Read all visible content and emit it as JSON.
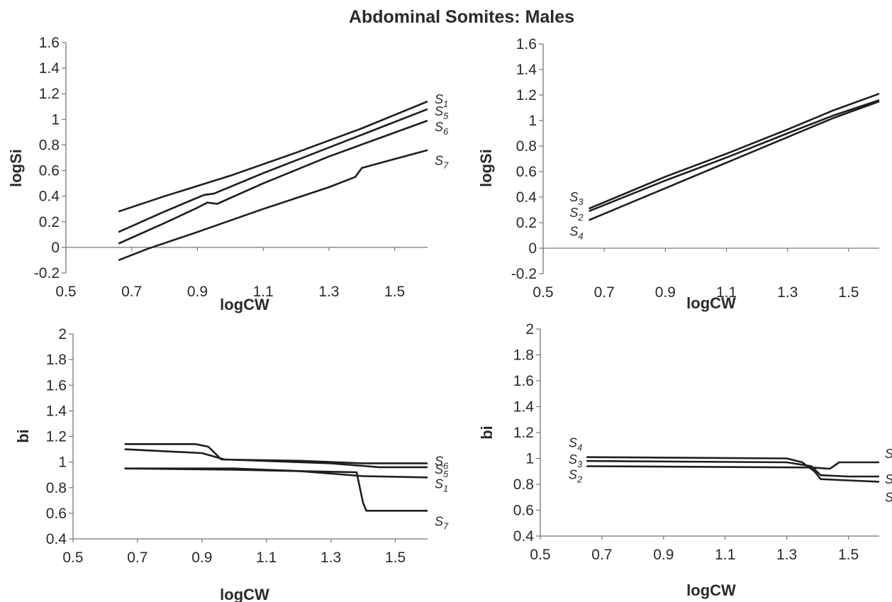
{
  "figure": {
    "title": "Abdominal Somites: Males"
  },
  "chart_data": [
    {
      "id": "top-left",
      "type": "line",
      "title": "",
      "xlabel": "logCW",
      "ylabel": "logSi",
      "xlim": [
        0.5,
        1.6
      ],
      "ylim": [
        -0.2,
        1.6
      ],
      "xticks": [
        "0.5",
        "0.7",
        "0.9",
        "1.1",
        "1.3",
        "1.5"
      ],
      "yticks": [
        "-0.2",
        "0",
        "0.2",
        "0.4",
        "0.6",
        "0.8",
        "1",
        "1.2",
        "1.4",
        "1.6"
      ],
      "series": [
        {
          "name": "S1",
          "x": [
            0.66,
            0.8,
            1.0,
            1.2,
            1.4,
            1.6
          ],
          "y": [
            0.28,
            0.4,
            0.56,
            0.74,
            0.93,
            1.14
          ]
        },
        {
          "name": "S5",
          "x": [
            0.66,
            0.8,
            0.92,
            0.95,
            1.1,
            1.3,
            1.45,
            1.6
          ],
          "y": [
            0.12,
            0.28,
            0.41,
            0.42,
            0.58,
            0.78,
            0.93,
            1.08
          ]
        },
        {
          "name": "S6",
          "x": [
            0.66,
            0.8,
            0.9,
            0.93,
            0.96,
            1.1,
            1.3,
            1.45,
            1.6
          ],
          "y": [
            0.03,
            0.19,
            0.31,
            0.35,
            0.34,
            0.5,
            0.71,
            0.85,
            0.99
          ]
        },
        {
          "name": "S7",
          "x": [
            0.66,
            0.75,
            0.9,
            1.1,
            1.3,
            1.38,
            1.4,
            1.5,
            1.6
          ],
          "y": [
            -0.1,
            -0.01,
            0.12,
            0.3,
            0.47,
            0.55,
            0.62,
            0.69,
            0.76
          ]
        }
      ]
    },
    {
      "id": "top-right",
      "type": "line",
      "title": "",
      "xlabel": "logCW",
      "ylabel": "logSi",
      "xlim": [
        0.5,
        1.6
      ],
      "ylim": [
        -0.2,
        1.6
      ],
      "xticks": [
        "0.5",
        "0.7",
        "0.9",
        "1.1",
        "1.3",
        "1.5"
      ],
      "yticks": [
        "-0.2",
        "0",
        "0.2",
        "0.4",
        "0.6",
        "0.8",
        "1",
        "1.2",
        "1.4",
        "1.6"
      ],
      "series": [
        {
          "name": "S3",
          "x": [
            0.65,
            0.9,
            1.1,
            1.3,
            1.45,
            1.6
          ],
          "y": [
            0.31,
            0.56,
            0.74,
            0.93,
            1.08,
            1.21
          ]
        },
        {
          "name": "S2",
          "x": [
            0.65,
            0.9,
            1.1,
            1.3,
            1.45,
            1.6
          ],
          "y": [
            0.29,
            0.53,
            0.71,
            0.9,
            1.04,
            1.16
          ]
        },
        {
          "name": "S4",
          "x": [
            0.65,
            0.9,
            1.1,
            1.3,
            1.45,
            1.6
          ],
          "y": [
            0.22,
            0.47,
            0.67,
            0.87,
            1.02,
            1.15
          ]
        }
      ]
    },
    {
      "id": "bottom-left",
      "type": "line",
      "title": "",
      "xlabel": "logCW",
      "ylabel": "bi",
      "xlim": [
        0.5,
        1.6
      ],
      "ylim": [
        0.4,
        2.0
      ],
      "xticks": [
        "0.5",
        "0.7",
        "0.9",
        "1.1",
        "1.3",
        "1.5"
      ],
      "yticks": [
        "0.4",
        "0.6",
        "0.8",
        "1",
        "1.2",
        "1.4",
        "1.6",
        "1.8",
        "2"
      ],
      "series": [
        {
          "name": "S6",
          "x": [
            0.66,
            0.88,
            0.92,
            0.96,
            1.2,
            1.4,
            1.6
          ],
          "y": [
            1.14,
            1.14,
            1.12,
            1.02,
            1.01,
            0.99,
            0.99
          ]
        },
        {
          "name": "S5",
          "x": [
            0.66,
            0.9,
            0.97,
            1.3,
            1.45,
            1.6
          ],
          "y": [
            1.1,
            1.07,
            1.02,
            0.99,
            0.96,
            0.96
          ]
        },
        {
          "name": "S1",
          "x": [
            0.66,
            1.0,
            1.2,
            1.4,
            1.6
          ],
          "y": [
            0.95,
            0.95,
            0.93,
            0.89,
            0.88
          ]
        },
        {
          "name": "S7",
          "x": [
            0.66,
            1.0,
            1.38,
            1.39,
            1.4,
            1.41,
            1.6
          ],
          "y": [
            0.95,
            0.94,
            0.92,
            0.8,
            0.68,
            0.62,
            0.62
          ]
        }
      ]
    },
    {
      "id": "bottom-right",
      "type": "line",
      "title": "",
      "xlabel": "logCW",
      "ylabel": "bi",
      "xlim": [
        0.5,
        1.6
      ],
      "ylim": [
        0.4,
        2.0
      ],
      "xticks": [
        "0.5",
        "0.7",
        "0.9",
        "1.1",
        "1.3",
        "1.5"
      ],
      "yticks": [
        "0.4",
        "0.6",
        "0.8",
        "1",
        "1.2",
        "1.4",
        "1.6",
        "1.8",
        "2"
      ],
      "series": [
        {
          "name": "S4",
          "x": [
            0.65,
            1.3,
            1.35,
            1.39,
            1.41,
            1.5,
            1.6
          ],
          "y": [
            1.01,
            1.0,
            0.97,
            0.9,
            0.84,
            0.83,
            0.82
          ]
        },
        {
          "name": "S3",
          "x": [
            0.65,
            1.3,
            1.38,
            1.41,
            1.5,
            1.6
          ],
          "y": [
            0.98,
            0.97,
            0.94,
            0.87,
            0.86,
            0.86
          ]
        },
        {
          "name": "S2",
          "x": [
            0.65,
            1.38,
            1.44,
            1.47,
            1.6
          ],
          "y": [
            0.94,
            0.93,
            0.92,
            0.97,
            0.97
          ]
        }
      ]
    }
  ]
}
